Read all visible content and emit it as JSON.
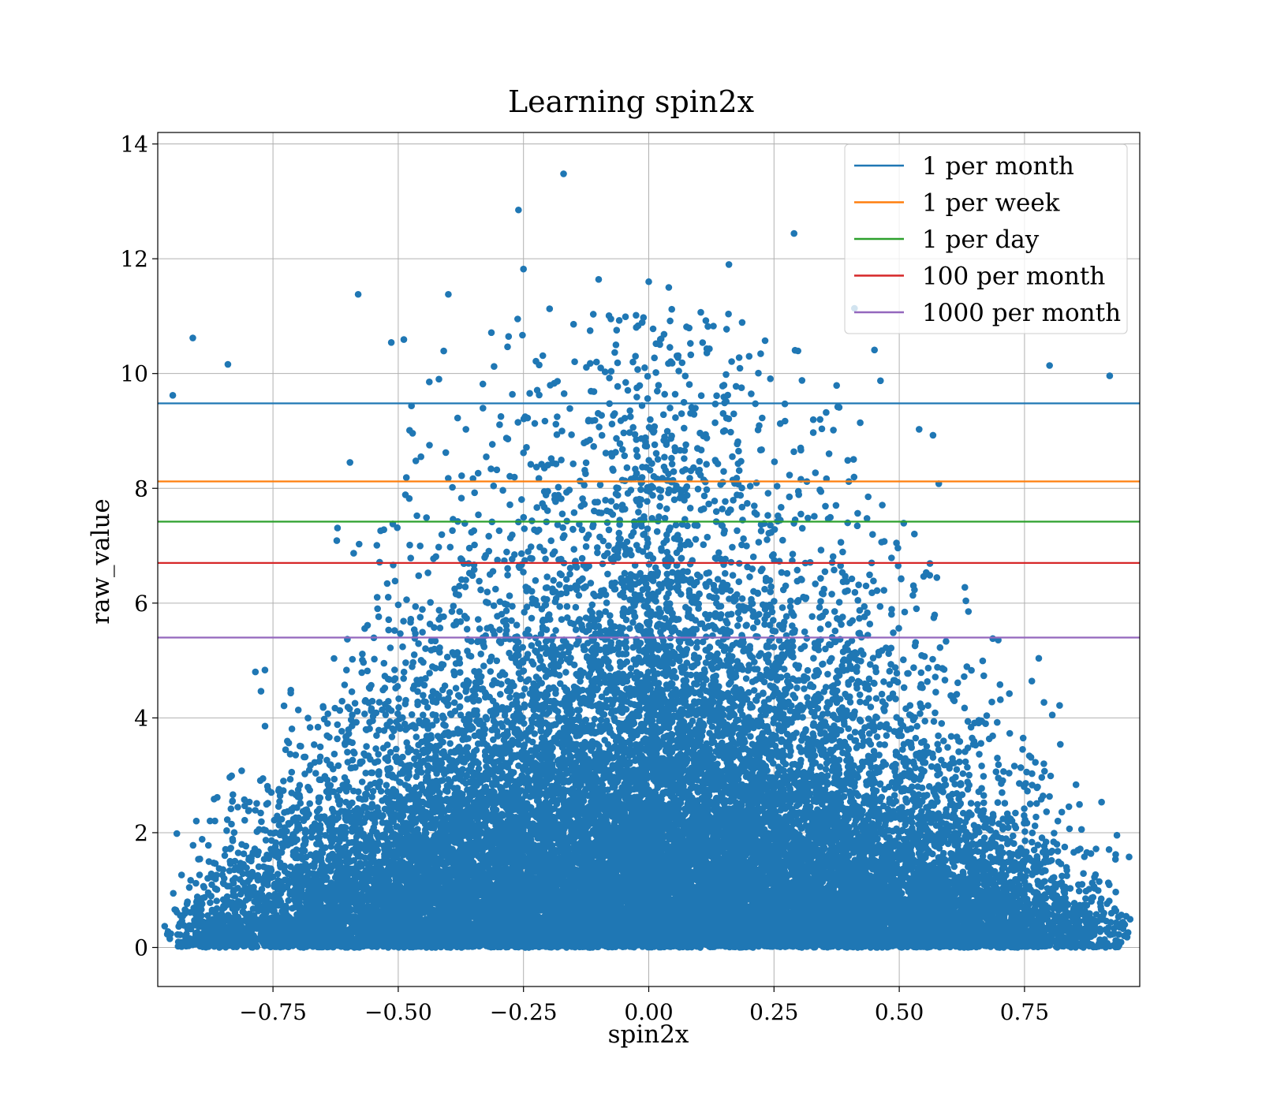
{
  "chart_data": {
    "type": "scatter",
    "title": "Learning spin2x",
    "xlabel": "spin2x",
    "ylabel": "raw_value",
    "xlim": [
      -0.98,
      0.98
    ],
    "ylim": [
      -0.68,
      14.2
    ],
    "xticks": [
      -0.75,
      -0.5,
      -0.25,
      0.0,
      0.25,
      0.5,
      0.75
    ],
    "xtick_labels": [
      "−0.75",
      "−0.50",
      "−0.25",
      "0.00",
      "0.25",
      "0.50",
      "0.75"
    ],
    "yticks": [
      0,
      2,
      4,
      6,
      8,
      10,
      12,
      14
    ],
    "ytick_labels": [
      "0",
      "2",
      "4",
      "6",
      "8",
      "10",
      "12",
      "14"
    ],
    "grid": true,
    "legend_position": "top-right",
    "scatter_color": "#1f77b4",
    "hlines": [
      {
        "name": "1 per month",
        "y": 9.48,
        "color": "#1f77b4"
      },
      {
        "name": "1 per week",
        "y": 8.12,
        "color": "#ff7f0e"
      },
      {
        "name": "1 per day",
        "y": 7.42,
        "color": "#2ca02c"
      },
      {
        "name": "100 per month",
        "y": 6.7,
        "color": "#d62728"
      },
      {
        "name": "1000 per month",
        "y": 5.4,
        "color": "#9467bd"
      }
    ],
    "outlier_points": [
      {
        "x": -0.17,
        "y": 13.48
      },
      {
        "x": -0.26,
        "y": 12.85
      },
      {
        "x": 0.29,
        "y": 12.44
      },
      {
        "x": -0.25,
        "y": 11.82
      },
      {
        "x": 0.16,
        "y": 11.9
      },
      {
        "x": -0.1,
        "y": 11.64
      },
      {
        "x": -0.4,
        "y": 11.38
      },
      {
        "x": -0.58,
        "y": 11.38
      },
      {
        "x": 0.0,
        "y": 11.6
      },
      {
        "x": 0.04,
        "y": 11.5
      },
      {
        "x": -0.91,
        "y": 10.62
      },
      {
        "x": -0.84,
        "y": 10.16
      },
      {
        "x": 0.92,
        "y": 9.96
      },
      {
        "x": 0.8,
        "y": 10.14
      },
      {
        "x": -0.95,
        "y": 9.62
      }
    ],
    "dense_cloud": {
      "description_ignored": false,
      "n_points": 24000,
      "shape": "triangular density peaked at x=0, exponential in y, heavier near y=0"
    }
  }
}
